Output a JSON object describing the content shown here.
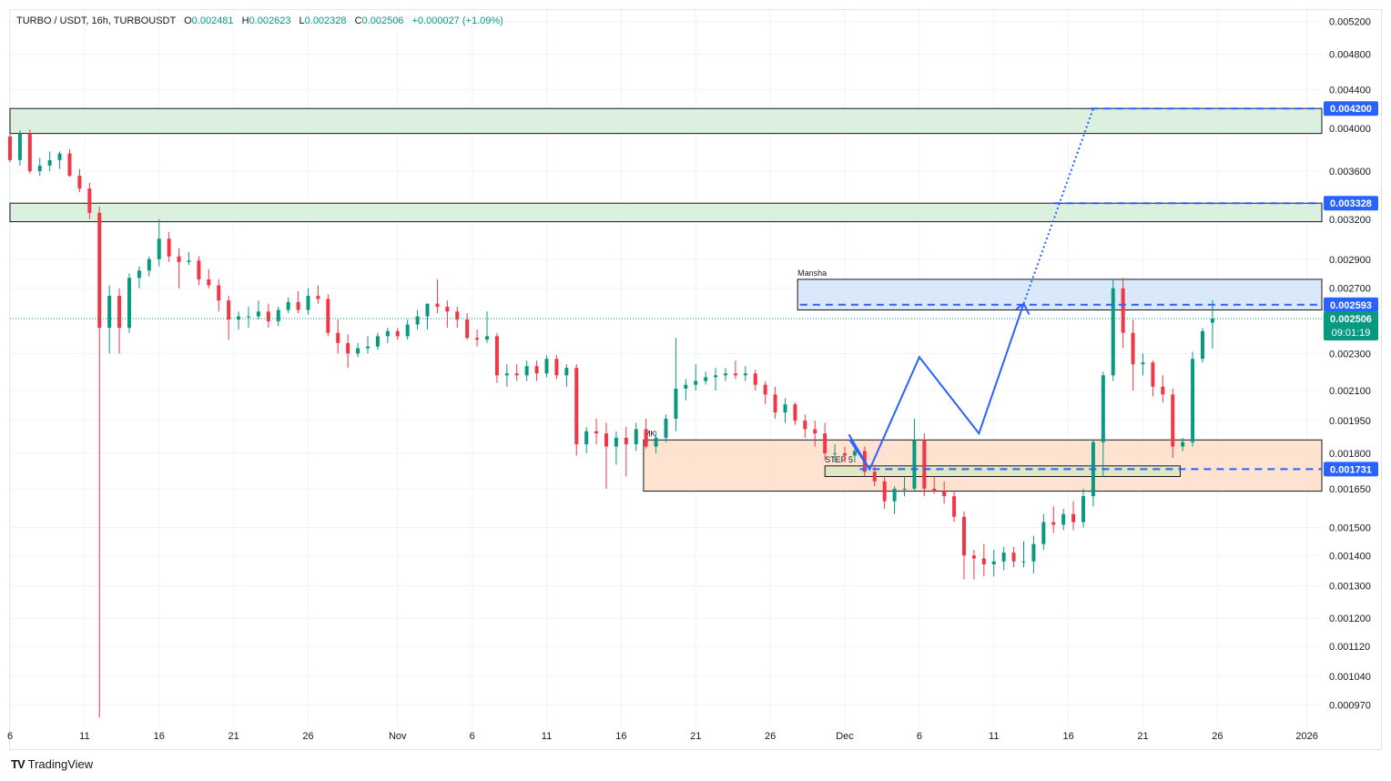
{
  "header": {
    "symbol": "TURBO / USDT, 16h, TURBOUSDT",
    "open_label": "O",
    "open": "0.002481",
    "high_label": "H",
    "high": "0.002623",
    "low_label": "L",
    "low": "0.002328",
    "close_label": "C",
    "close": "0.002506",
    "change": "+0.000027 (+1.09%)"
  },
  "footer": {
    "brand": "TradingView",
    "logo": "TV"
  },
  "colors": {
    "up": "#089981",
    "down": "#f23645",
    "accent": "#2962ff",
    "drawing": "#2962ff",
    "zone_green": "#d8eedb",
    "zone_orange": "#fde0cb",
    "zone_blue": "#d6e6fb",
    "zone_olive": "#dde7c0"
  },
  "chart_data": {
    "type": "candlestick",
    "timeframe": "16h",
    "y_scale": "log",
    "ylim": [
      0.00092,
      0.00535
    ],
    "y_ticks": [
      "0.005200",
      "0.004800",
      "0.004400",
      "0.004000",
      "0.003600",
      "0.003200",
      "0.002900",
      "0.002700",
      "0.002300",
      "0.002100",
      "0.001950",
      "0.001800",
      "0.001650",
      "0.001500",
      "0.001400",
      "0.001300",
      "0.001200",
      "0.001120",
      "0.001040",
      "0.000970"
    ],
    "x_ticks": [
      {
        "label": "6",
        "date": "2025-10-06"
      },
      {
        "label": "11",
        "date": "2025-10-11"
      },
      {
        "label": "16",
        "date": "2025-10-16"
      },
      {
        "label": "21",
        "date": "2025-10-21"
      },
      {
        "label": "26",
        "date": "2025-10-26"
      },
      {
        "label": "Nov",
        "date": "2025-11-01"
      },
      {
        "label": "6",
        "date": "2025-11-06"
      },
      {
        "label": "11",
        "date": "2025-11-11"
      },
      {
        "label": "16",
        "date": "2025-11-16"
      },
      {
        "label": "21",
        "date": "2025-11-21"
      },
      {
        "label": "26",
        "date": "2025-11-26"
      },
      {
        "label": "Dec",
        "date": "2025-12-01"
      },
      {
        "label": "6",
        "date": "2025-12-06"
      },
      {
        "label": "11",
        "date": "2025-12-11"
      },
      {
        "label": "16",
        "date": "2025-12-16"
      },
      {
        "label": "21",
        "date": "2025-12-21"
      },
      {
        "label": "26",
        "date": "2025-12-26"
      },
      {
        "label": "2026",
        "date": "2026-01-01"
      }
    ],
    "x_range": [
      "2025-10-06",
      "2026-01-02"
    ],
    "start_date": "2025-10-06",
    "candles": [
      [
        0.00392,
        0.00395,
        0.00368,
        0.0037
      ],
      [
        0.0037,
        0.00398,
        0.00365,
        0.00395
      ],
      [
        0.00395,
        0.00399,
        0.00358,
        0.0036
      ],
      [
        0.0036,
        0.00372,
        0.00356,
        0.00365
      ],
      [
        0.00365,
        0.00378,
        0.0036,
        0.0037
      ],
      [
        0.0037,
        0.00378,
        0.00362,
        0.00376
      ],
      [
        0.00376,
        0.0038,
        0.00355,
        0.00356
      ],
      [
        0.00356,
        0.00362,
        0.00342,
        0.00345
      ],
      [
        0.00345,
        0.0035,
        0.0032,
        0.00325
      ],
      [
        0.00325,
        0.0033,
        0.00094,
        0.00245
      ],
      [
        0.00245,
        0.00272,
        0.0023,
        0.00265
      ],
      [
        0.00265,
        0.0027,
        0.0023,
        0.00245
      ],
      [
        0.00245,
        0.0028,
        0.00242,
        0.00277
      ],
      [
        0.00277,
        0.00285,
        0.0027,
        0.00282
      ],
      [
        0.00282,
        0.00292,
        0.00278,
        0.0029
      ],
      [
        0.0029,
        0.0032,
        0.00285,
        0.00305
      ],
      [
        0.00305,
        0.0031,
        0.00288,
        0.00292
      ],
      [
        0.00292,
        0.00298,
        0.0027,
        0.00288
      ],
      [
        0.00288,
        0.00295,
        0.00286,
        0.00289
      ],
      [
        0.00289,
        0.00292,
        0.00272,
        0.00276
      ],
      [
        0.00276,
        0.00283,
        0.0027,
        0.00272
      ],
      [
        0.00272,
        0.00276,
        0.00255,
        0.00262
      ],
      [
        0.00262,
        0.00265,
        0.00238,
        0.0025
      ],
      [
        0.0025,
        0.00255,
        0.00244,
        0.00252
      ],
      [
        0.00252,
        0.00258,
        0.00245,
        0.00252
      ],
      [
        0.00252,
        0.00262,
        0.0025,
        0.00255
      ],
      [
        0.00255,
        0.0026,
        0.00245,
        0.00249
      ],
      [
        0.00249,
        0.00258,
        0.00246,
        0.00256
      ],
      [
        0.00256,
        0.00264,
        0.00254,
        0.00261
      ],
      [
        0.00261,
        0.00268,
        0.00254,
        0.00256
      ],
      [
        0.00256,
        0.0027,
        0.00253,
        0.00265
      ],
      [
        0.00265,
        0.00272,
        0.0026,
        0.00263
      ],
      [
        0.00263,
        0.00266,
        0.0024,
        0.00242
      ],
      [
        0.00242,
        0.0025,
        0.0023,
        0.00236
      ],
      [
        0.00236,
        0.00241,
        0.00222,
        0.0023
      ],
      [
        0.0023,
        0.00236,
        0.00228,
        0.00233
      ],
      [
        0.00233,
        0.0024,
        0.0023,
        0.00234
      ],
      [
        0.00234,
        0.00242,
        0.00232,
        0.0024
      ],
      [
        0.0024,
        0.00245,
        0.00236,
        0.00243
      ],
      [
        0.00243,
        0.00245,
        0.00238,
        0.0024
      ],
      [
        0.0024,
        0.0025,
        0.00238,
        0.00247
      ],
      [
        0.00247,
        0.00256,
        0.00244,
        0.00252
      ],
      [
        0.00252,
        0.0026,
        0.00244,
        0.0026
      ],
      [
        0.0026,
        0.00276,
        0.00254,
        0.00258
      ],
      [
        0.00258,
        0.00262,
        0.00245,
        0.00255
      ],
      [
        0.00255,
        0.00258,
        0.00245,
        0.0025
      ],
      [
        0.0025,
        0.00254,
        0.00238,
        0.00239
      ],
      [
        0.00239,
        0.00244,
        0.00234,
        0.00238
      ],
      [
        0.00238,
        0.00255,
        0.00236,
        0.0024
      ],
      [
        0.0024,
        0.00242,
        0.00214,
        0.00218
      ],
      [
        0.00218,
        0.00224,
        0.00212,
        0.00219
      ],
      [
        0.00219,
        0.00224,
        0.00215,
        0.00218
      ],
      [
        0.00218,
        0.00226,
        0.00215,
        0.00223
      ],
      [
        0.00223,
        0.00226,
        0.00215,
        0.00219
      ],
      [
        0.00219,
        0.00229,
        0.00217,
        0.00227
      ],
      [
        0.00227,
        0.00229,
        0.00216,
        0.00218
      ],
      [
        0.00218,
        0.00224,
        0.00212,
        0.00222
      ],
      [
        0.00222,
        0.00224,
        0.00179,
        0.00184
      ],
      [
        0.00184,
        0.00192,
        0.0018,
        0.0019
      ],
      [
        0.0019,
        0.00196,
        0.00184,
        0.00189
      ],
      [
        0.00189,
        0.00194,
        0.00165,
        0.00183
      ],
      [
        0.00183,
        0.0019,
        0.00175,
        0.00187
      ],
      [
        0.00187,
        0.00192,
        0.0017,
        0.00184
      ],
      [
        0.00184,
        0.00194,
        0.00181,
        0.00191
      ],
      [
        0.00191,
        0.00196,
        0.00182,
        0.00183
      ],
      [
        0.00183,
        0.0019,
        0.0018,
        0.00187
      ],
      [
        0.00187,
        0.00198,
        0.00185,
        0.00196
      ],
      [
        0.00196,
        0.00239,
        0.0019,
        0.00211
      ],
      [
        0.00211,
        0.00216,
        0.00205,
        0.00213
      ],
      [
        0.00213,
        0.00224,
        0.0021,
        0.00215
      ],
      [
        0.00215,
        0.0022,
        0.00213,
        0.00217
      ],
      [
        0.00217,
        0.00222,
        0.0021,
        0.00218
      ],
      [
        0.00218,
        0.00222,
        0.00215,
        0.00219
      ],
      [
        0.00219,
        0.00226,
        0.00216,
        0.00218
      ],
      [
        0.00218,
        0.00223,
        0.00215,
        0.00219
      ],
      [
        0.00219,
        0.00221,
        0.0021,
        0.00213
      ],
      [
        0.00213,
        0.00215,
        0.00203,
        0.00208
      ],
      [
        0.00208,
        0.00212,
        0.00196,
        0.00199
      ],
      [
        0.00199,
        0.00206,
        0.00194,
        0.00203
      ],
      [
        0.00203,
        0.00204,
        0.00193,
        0.00195
      ],
      [
        0.00195,
        0.00198,
        0.00187,
        0.00191
      ],
      [
        0.00191,
        0.00195,
        0.00183,
        0.00189
      ],
      [
        0.00189,
        0.00194,
        0.00177,
        0.0018
      ],
      [
        0.0018,
        0.00184,
        0.00176,
        0.0018
      ],
      [
        0.0018,
        0.00183,
        0.00176,
        0.00179
      ],
      [
        0.00179,
        0.00183,
        0.00176,
        0.00181
      ],
      [
        0.00181,
        0.00183,
        0.0017,
        0.00172
      ],
      [
        0.00172,
        0.00175,
        0.00166,
        0.00168
      ],
      [
        0.00168,
        0.0017,
        0.00157,
        0.0016
      ],
      [
        0.0016,
        0.00166,
        0.00155,
        0.00165
      ],
      [
        0.00165,
        0.0017,
        0.00162,
        0.00165
      ],
      [
        0.00165,
        0.00196,
        0.00164,
        0.00186
      ],
      [
        0.00186,
        0.00189,
        0.00162,
        0.00165
      ],
      [
        0.00165,
        0.0017,
        0.00163,
        0.00164
      ],
      [
        0.00164,
        0.00168,
        0.00159,
        0.00162
      ],
      [
        0.00162,
        0.00164,
        0.00152,
        0.00154
      ],
      [
        0.00154,
        0.00156,
        0.00132,
        0.0014
      ],
      [
        0.0014,
        0.00142,
        0.00132,
        0.00139
      ],
      [
        0.00139,
        0.00144,
        0.00133,
        0.00137
      ],
      [
        0.00137,
        0.00142,
        0.00133,
        0.00138
      ],
      [
        0.00138,
        0.00143,
        0.00135,
        0.00141
      ],
      [
        0.00141,
        0.00143,
        0.00136,
        0.00138
      ],
      [
        0.00138,
        0.00145,
        0.00136,
        0.00138
      ],
      [
        0.00138,
        0.00147,
        0.00134,
        0.00144
      ],
      [
        0.00144,
        0.00155,
        0.00142,
        0.00152
      ],
      [
        0.00152,
        0.00158,
        0.00148,
        0.00151
      ],
      [
        0.00151,
        0.00157,
        0.00149,
        0.00155
      ],
      [
        0.00155,
        0.0016,
        0.00149,
        0.00152
      ],
      [
        0.00152,
        0.00165,
        0.0015,
        0.00162
      ],
      [
        0.00162,
        0.00186,
        0.00158,
        0.00185
      ],
      [
        0.00185,
        0.0022,
        0.0017,
        0.00218
      ],
      [
        0.00218,
        0.00276,
        0.00215,
        0.0027
      ],
      [
        0.0027,
        0.00277,
        0.00233,
        0.00242
      ],
      [
        0.00242,
        0.0025,
        0.0021,
        0.00224
      ],
      [
        0.00224,
        0.0023,
        0.00218,
        0.00225
      ],
      [
        0.00225,
        0.00226,
        0.00207,
        0.00212
      ],
      [
        0.00212,
        0.00218,
        0.00204,
        0.00208
      ],
      [
        0.00208,
        0.00211,
        0.00178,
        0.00183
      ],
      [
        0.00183,
        0.00187,
        0.00181,
        0.00185
      ],
      [
        0.00185,
        0.00231,
        0.00183,
        0.00227
      ],
      [
        0.00227,
        0.00245,
        0.00225,
        0.00243
      ],
      [
        0.002481,
        0.002623,
        0.002328,
        0.002506
      ]
    ],
    "zones": [
      {
        "name": "resistance-zone-upper",
        "top": 0.0042,
        "bottom": 0.00395,
        "color": "#d8eedb"
      },
      {
        "name": "resistance-zone-lower",
        "top": 0.003328,
        "bottom": 0.00318,
        "color": "#d8eedb"
      },
      {
        "name": "mansha-zone",
        "label": "Mansha",
        "top": 0.00276,
        "bottom": 0.00256,
        "x_start": "2025-11-27T20:00",
        "color": "#d6e6fb"
      },
      {
        "name": "mk-zone",
        "label": "MK",
        "top": 0.00186,
        "bottom": 0.00164,
        "x_start": "2025-11-17T12:00",
        "color": "#fde0cb"
      },
      {
        "name": "step5-zone",
        "label": "STEP 5",
        "top": 0.001745,
        "bottom": 0.0017,
        "x_start": "2025-11-29T16:00",
        "x_end": "2025-12-23T12:00",
        "color": "#dde7c0"
      }
    ],
    "levels": [
      {
        "name": "level-0.004200",
        "value": 0.0042,
        "label": "0.004200",
        "x_start": "2025-12-17T12:00"
      },
      {
        "name": "level-0.003328",
        "value": 0.003328,
        "label": "0.003328",
        "x_start": "2025-12-15T00:00"
      },
      {
        "name": "level-0.002593",
        "value": 0.002593,
        "label": "0.002593",
        "x_start": "2025-11-28T00:00"
      },
      {
        "name": "level-0.001731",
        "value": 0.001731,
        "label": "0.001731",
        "x_start": "2025-12-02T00:00"
      }
    ],
    "current_price": {
      "value": 0.002506,
      "label": "0.002506",
      "countdown": "09:01:19"
    },
    "projection": {
      "solid": [
        {
          "t": "2025-12-01T08:00",
          "p": 0.00186
        },
        {
          "t": "2025-12-02T16:00",
          "p": 0.00173
        },
        {
          "t": "2025-12-06T00:00",
          "p": 0.00228
        },
        {
          "t": "2025-12-10T00:00",
          "p": 0.00189
        },
        {
          "t": "2025-12-13T00:00",
          "p": 0.0026
        }
      ],
      "dotted": [
        {
          "t": "2025-12-13T00:00",
          "p": 0.0026
        },
        {
          "t": "2025-12-17T16:00",
          "p": 0.0042
        }
      ]
    }
  }
}
